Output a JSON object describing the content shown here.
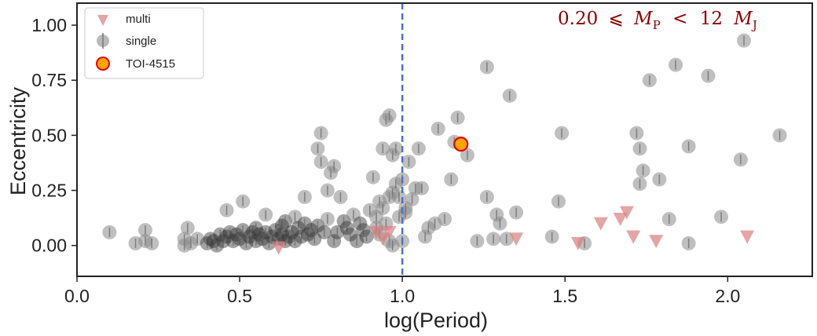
{
  "chart_data": {
    "type": "scatter",
    "xlabel": "log(Period)",
    "ylabel": "Eccentricity",
    "xlim": [
      0.0,
      2.26
    ],
    "ylim": [
      -0.14,
      1.1
    ],
    "xticks": [
      "0.0",
      "0.5",
      "1.0",
      "1.5",
      "2.0"
    ],
    "xtick_values": [
      0.0,
      0.5,
      1.0,
      1.5,
      2.0
    ],
    "yticks": [
      "0.00",
      "0.25",
      "0.50",
      "0.75",
      "1.00"
    ],
    "ytick_values": [
      0.0,
      0.25,
      0.5,
      0.75,
      1.0
    ],
    "vline": {
      "x": 1.0,
      "style": "dashed",
      "color": "#4a72c4"
    },
    "annotation": {
      "mass_low": "0.20",
      "le_symbol": "⩽",
      "mass_sym": "M",
      "mass_sub": "P",
      "lt_symbol": "<",
      "mass_high": "12",
      "unit_sym": "M",
      "unit_sub": "J",
      "placement": "top-right"
    },
    "legend": {
      "placement": "top-left",
      "entries": [
        "multi",
        "single",
        "TOI-4515"
      ]
    },
    "colors": {
      "single": "#8a8a8a",
      "single_dense": "#333333",
      "multi": "#d87f7f",
      "toi_fill": "#ffa500",
      "toi_edge": "#e0000f",
      "vline": "#4a72c4",
      "annotation": "#8b0000"
    },
    "series": [
      {
        "name": "single",
        "points": [
          [
            0.1,
            0.06
          ],
          [
            0.18,
            0.01
          ],
          [
            0.21,
            0.07
          ],
          [
            0.21,
            0.02
          ],
          [
            0.23,
            0.01
          ],
          [
            0.33,
            0.03
          ],
          [
            0.33,
            0.0
          ],
          [
            0.34,
            0.08
          ],
          [
            0.35,
            0.01
          ],
          [
            0.37,
            0.03
          ],
          [
            0.4,
            0.01
          ],
          [
            0.41,
            0.03
          ],
          [
            0.42,
            0.02
          ],
          [
            0.43,
            0.0
          ],
          [
            0.44,
            0.05
          ],
          [
            0.45,
            0.02
          ],
          [
            0.46,
            0.04
          ],
          [
            0.46,
            0.16
          ],
          [
            0.47,
            0.06
          ],
          [
            0.48,
            0.02
          ],
          [
            0.49,
            0.05
          ],
          [
            0.5,
            0.03
          ],
          [
            0.51,
            0.07
          ],
          [
            0.51,
            0.2
          ],
          [
            0.52,
            0.01
          ],
          [
            0.53,
            0.04
          ],
          [
            0.54,
            0.06
          ],
          [
            0.55,
            0.08
          ],
          [
            0.55,
            0.02
          ],
          [
            0.56,
            0.05
          ],
          [
            0.57,
            0.03
          ],
          [
            0.58,
            0.06
          ],
          [
            0.58,
            0.14
          ],
          [
            0.59,
            0.01
          ],
          [
            0.6,
            0.04
          ],
          [
            0.61,
            0.07
          ],
          [
            0.62,
            0.03
          ],
          [
            0.63,
            0.09
          ],
          [
            0.63,
            0.05
          ],
          [
            0.64,
            0.11
          ],
          [
            0.64,
            0.02
          ],
          [
            0.65,
            0.04
          ],
          [
            0.66,
            0.06
          ],
          [
            0.67,
            0.02
          ],
          [
            0.67,
            0.13
          ],
          [
            0.68,
            0.08
          ],
          [
            0.69,
            0.04
          ],
          [
            0.7,
            0.1
          ],
          [
            0.7,
            0.22
          ],
          [
            0.71,
            0.05
          ],
          [
            0.72,
            0.07
          ],
          [
            0.73,
            0.03
          ],
          [
            0.74,
            0.09
          ],
          [
            0.74,
            0.44
          ],
          [
            0.75,
            0.51
          ],
          [
            0.75,
            0.38
          ],
          [
            0.76,
            0.06
          ],
          [
            0.77,
            0.25
          ],
          [
            0.77,
            0.12
          ],
          [
            0.78,
            0.33
          ],
          [
            0.79,
            0.36
          ],
          [
            0.79,
            0.02
          ],
          [
            0.8,
            0.06
          ],
          [
            0.81,
            0.22
          ],
          [
            0.82,
            0.11
          ],
          [
            0.83,
            0.08
          ],
          [
            0.84,
            0.05
          ],
          [
            0.85,
            0.14
          ],
          [
            0.86,
            0.02
          ],
          [
            0.87,
            0.1
          ],
          [
            0.88,
            0.07
          ],
          [
            0.89,
            0.04
          ],
          [
            0.9,
            0.16
          ],
          [
            0.91,
            0.31
          ],
          [
            0.92,
            0.13
          ],
          [
            0.92,
            0.08
          ],
          [
            0.93,
            0.2
          ],
          [
            0.93,
            0.05
          ],
          [
            0.94,
            0.17
          ],
          [
            0.94,
            0.44
          ],
          [
            0.95,
            0.1
          ],
          [
            0.95,
            0.57
          ],
          [
            0.96,
            0.59
          ],
          [
            0.96,
            0.22
          ],
          [
            0.96,
            0.02
          ],
          [
            0.97,
            0.24
          ],
          [
            0.97,
            0.0
          ],
          [
            0.97,
            0.41
          ],
          [
            0.98,
            0.44
          ],
          [
            0.98,
            0.28
          ],
          [
            0.99,
            0.22
          ],
          [
            0.99,
            0.13
          ],
          [
            1.0,
            0.02
          ],
          [
            1.0,
            0.3
          ],
          [
            1.01,
            0.15
          ],
          [
            1.01,
            0.17
          ],
          [
            1.02,
            0.38
          ],
          [
            1.03,
            0.21
          ],
          [
            1.04,
            0.26
          ],
          [
            1.05,
            0.44
          ],
          [
            1.06,
            0.26
          ],
          [
            1.07,
            0.04
          ],
          [
            1.08,
            0.08
          ],
          [
            1.1,
            0.1
          ],
          [
            1.11,
            0.53
          ],
          [
            1.13,
            0.12
          ],
          [
            1.15,
            0.3
          ],
          [
            1.16,
            0.47
          ],
          [
            1.17,
            0.58
          ],
          [
            1.2,
            0.41
          ],
          [
            1.23,
            0.02
          ],
          [
            1.26,
            0.22
          ],
          [
            1.26,
            0.81
          ],
          [
            1.28,
            0.03
          ],
          [
            1.29,
            0.14
          ],
          [
            1.3,
            0.1
          ],
          [
            1.32,
            0.03
          ],
          [
            1.33,
            0.68
          ],
          [
            1.35,
            0.15
          ],
          [
            1.46,
            0.04
          ],
          [
            1.48,
            0.2
          ],
          [
            1.49,
            0.51
          ],
          [
            1.56,
            0.01
          ],
          [
            1.72,
            0.51
          ],
          [
            1.73,
            0.44
          ],
          [
            1.73,
            0.28
          ],
          [
            1.74,
            0.34
          ],
          [
            1.76,
            0.75
          ],
          [
            1.79,
            0.3
          ],
          [
            1.82,
            0.12
          ],
          [
            1.84,
            0.82
          ],
          [
            1.88,
            0.45
          ],
          [
            1.88,
            0.01
          ],
          [
            1.94,
            0.77
          ],
          [
            1.98,
            0.13
          ],
          [
            2.04,
            0.39
          ],
          [
            2.05,
            0.93
          ],
          [
            2.16,
            0.5
          ]
        ]
      },
      {
        "name": "multi",
        "points": [
          [
            0.62,
            -0.01
          ],
          [
            0.92,
            0.06
          ],
          [
            0.94,
            0.03
          ],
          [
            0.96,
            0.06
          ],
          [
            1.35,
            0.03
          ],
          [
            1.54,
            0.01
          ],
          [
            1.61,
            0.1
          ],
          [
            1.67,
            0.12
          ],
          [
            1.69,
            0.15
          ],
          [
            1.71,
            0.04
          ],
          [
            1.78,
            0.02
          ],
          [
            2.06,
            0.04
          ]
        ]
      },
      {
        "name": "TOI-4515",
        "points": [
          [
            1.18,
            0.46
          ]
        ]
      }
    ]
  }
}
